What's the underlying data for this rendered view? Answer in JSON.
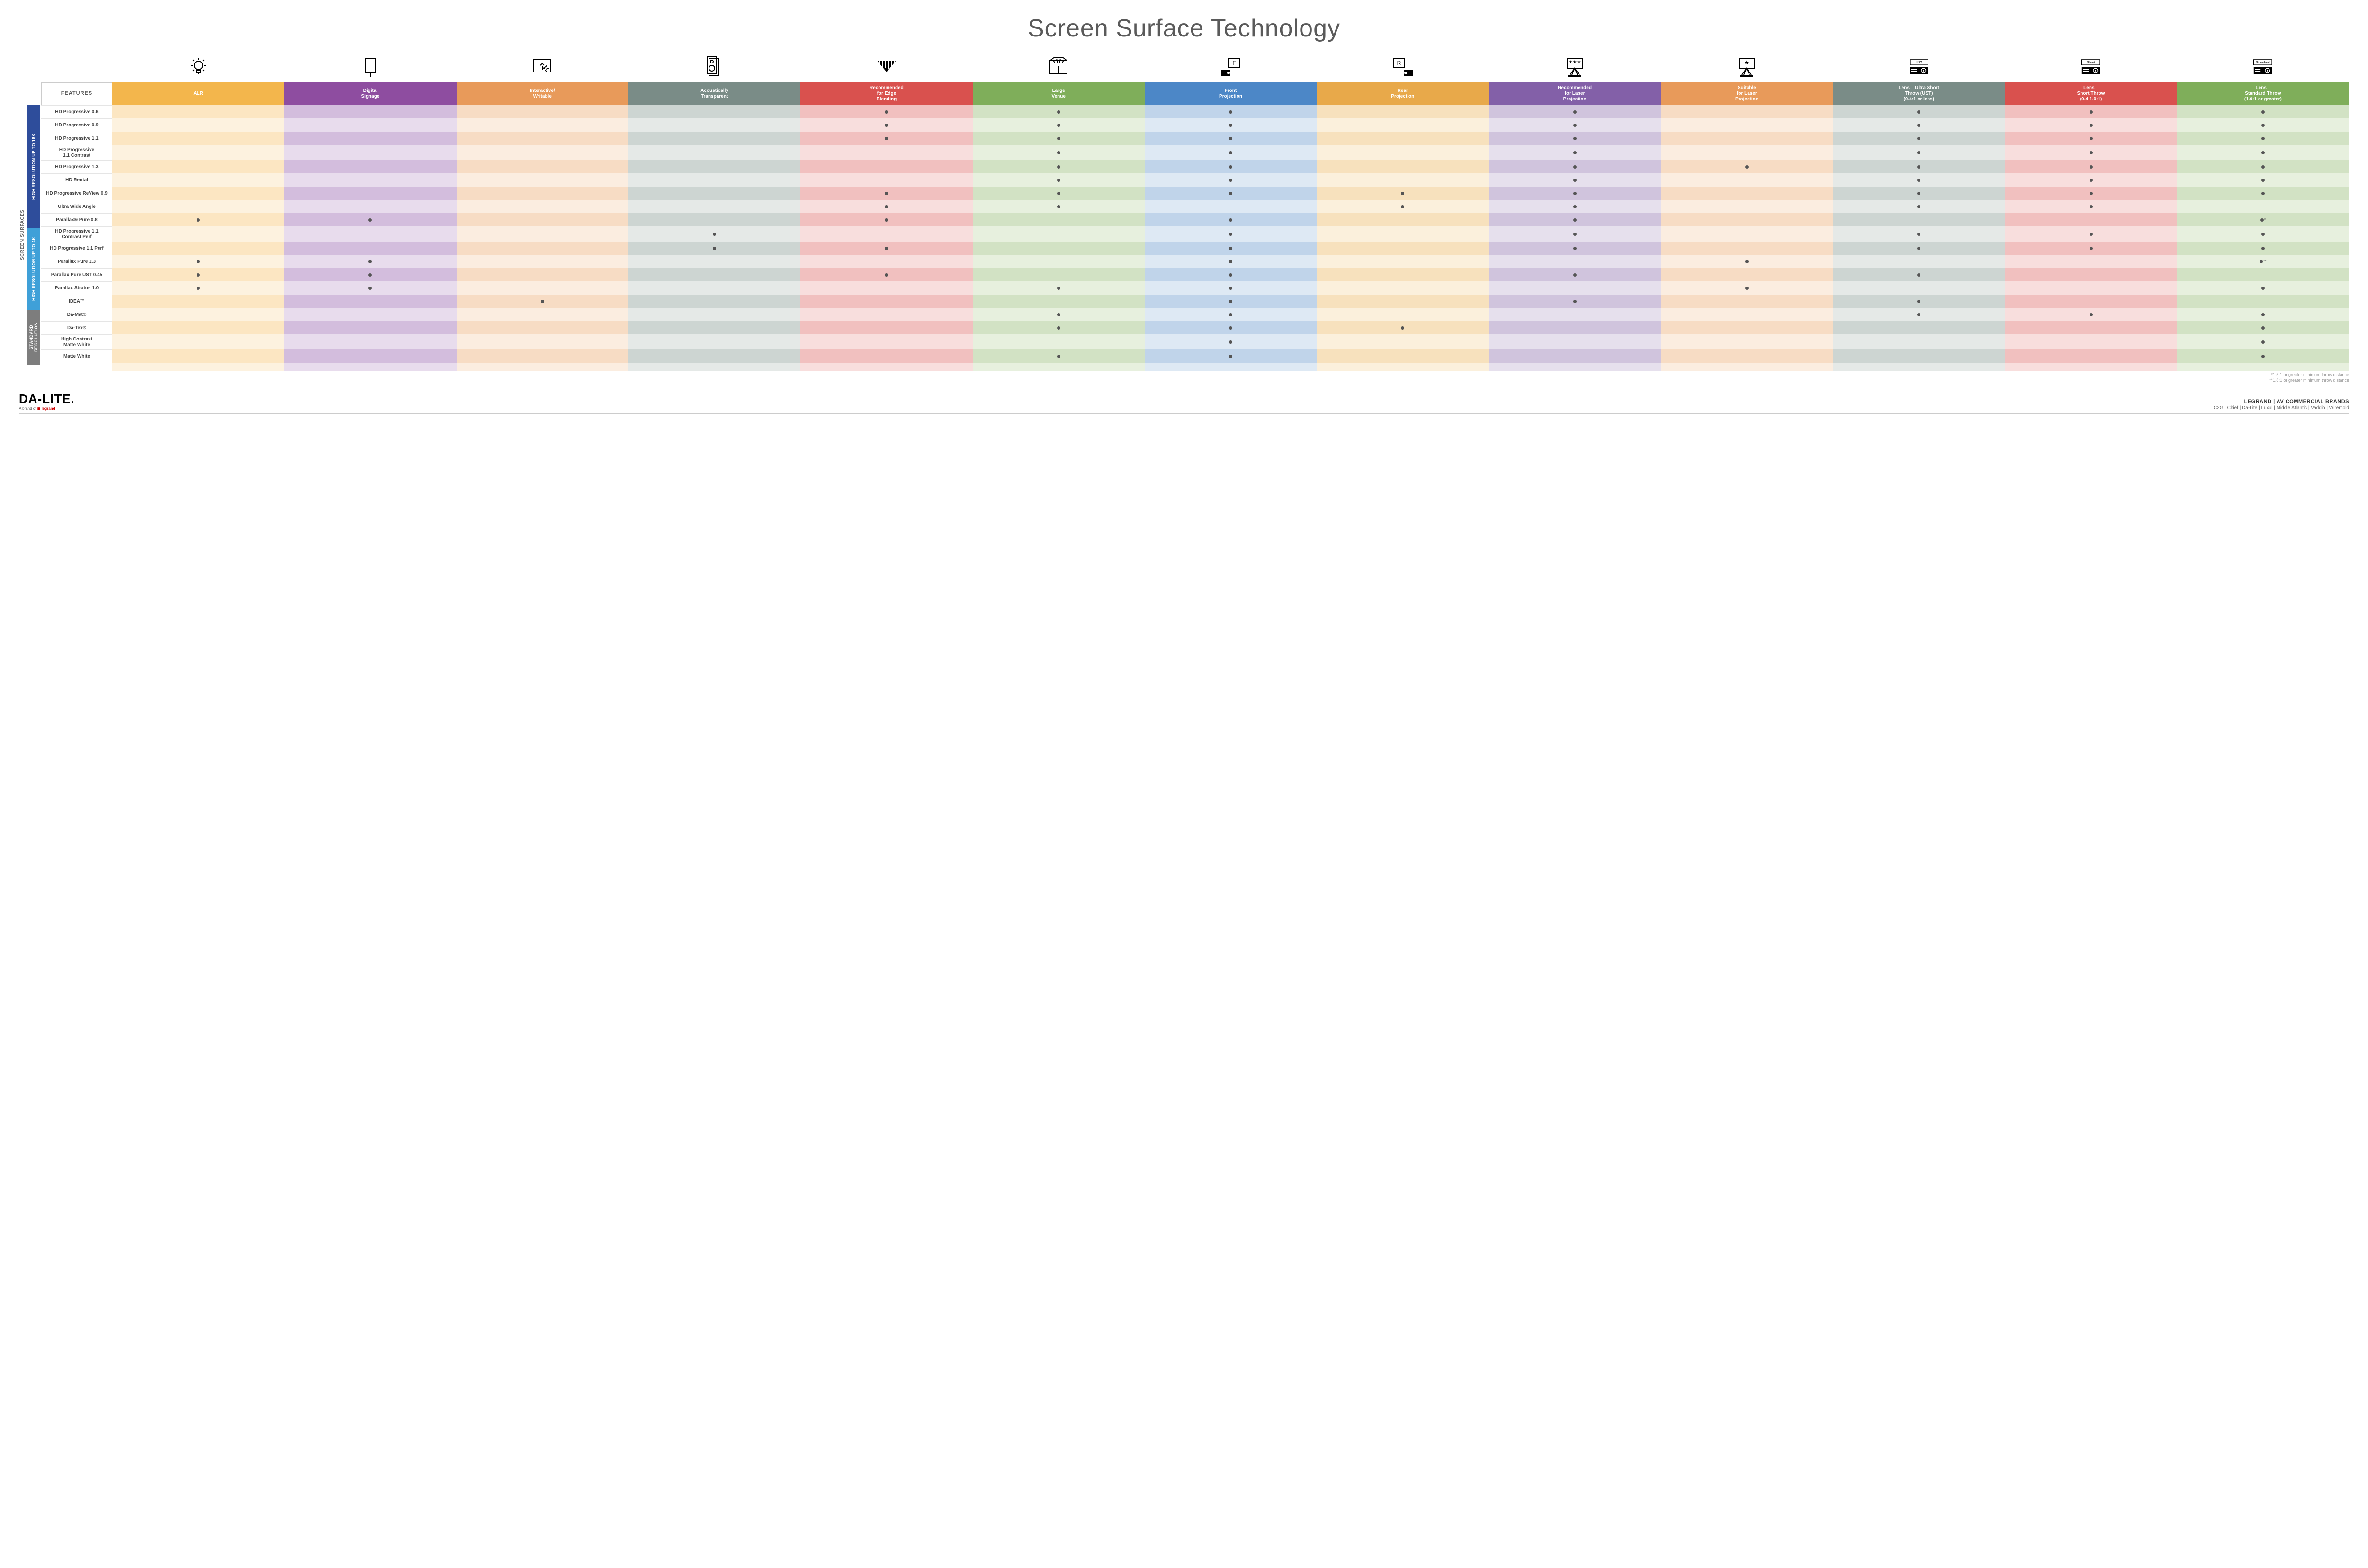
{
  "title": "Screen Surface Technology",
  "features_header": "FEATURES",
  "side_label": "SCREEN SURFACES",
  "columns": [
    {
      "key": "alr",
      "label": "ALR",
      "color": "#f3b64c",
      "light": "#fce6c2",
      "lighter": "#fdf2df"
    },
    {
      "key": "signage",
      "label": "Digital\nSignage",
      "color": "#8e4da0",
      "light": "#d3bddd",
      "lighter": "#e8dced"
    },
    {
      "key": "interactive",
      "label": "Interactive/\nWritable",
      "color": "#e89a5a",
      "light": "#f7dcc4",
      "lighter": "#fbede0"
    },
    {
      "key": "acoustic",
      "label": "Acoustically\nTransparent",
      "color": "#7a8c87",
      "light": "#cdd5d2",
      "lighter": "#e5e9e7"
    },
    {
      "key": "edge",
      "label": "Recommended\nfor Edge\nBlending",
      "color": "#d9514e",
      "light": "#f1c0bf",
      "lighter": "#f8dedd"
    },
    {
      "key": "large",
      "label": "Large\nVenue",
      "color": "#7fae5a",
      "light": "#d2e2c4",
      "lighter": "#e7f0de"
    },
    {
      "key": "front",
      "label": "Front\nProjection",
      "color": "#4c87c7",
      "light": "#c0d4ea",
      "lighter": "#dee9f4"
    },
    {
      "key": "rear",
      "label": "Rear\nProjection",
      "color": "#e8a94a",
      "light": "#f7e1bd",
      "lighter": "#fbf0dc"
    },
    {
      "key": "reclaser",
      "label": "Recommended\nfor Laser\nProjection",
      "color": "#8360a8",
      "light": "#d0c4dd",
      "lighter": "#e6e0ed"
    },
    {
      "key": "suitlaser",
      "label": "Suitable\nfor Laser\nProjection",
      "color": "#e89a5a",
      "light": "#f7dcc4",
      "lighter": "#fbede0"
    },
    {
      "key": "ust",
      "label": "Lens – Ultra Short\nThrow (UST)\n(0.4:1 or less)",
      "color": "#7a8c87",
      "light": "#cdd5d2",
      "lighter": "#e5e9e7"
    },
    {
      "key": "short",
      "label": "Lens –\nShort Throw\n(0.4-1.0:1)",
      "color": "#d9514e",
      "light": "#f1c0bf",
      "lighter": "#f8dedd"
    },
    {
      "key": "std",
      "label": "Lens –\nStandard Throw\n(1.0:1 or greater)",
      "color": "#7fae5a",
      "light": "#d2e2c4",
      "lighter": "#e7f0de"
    }
  ],
  "groups": [
    {
      "label": "HIGH RESOLUTION UP TO 16K",
      "color": "#2e4d9b",
      "rows": [
        {
          "name": "HD Progressive 0.6",
          "cells": {
            "edge": "•",
            "large": "•",
            "front": "•",
            "reclaser": "•",
            "ust": "•",
            "short": "•",
            "std": "•"
          }
        },
        {
          "name": "HD Progressive 0.9",
          "cells": {
            "edge": "•",
            "large": "•",
            "front": "•",
            "reclaser": "•",
            "ust": "•",
            "short": "•",
            "std": "•"
          }
        },
        {
          "name": "HD Progressive 1.1",
          "cells": {
            "edge": "•",
            "large": "•",
            "front": "•",
            "reclaser": "•",
            "ust": "•",
            "short": "•",
            "std": "•"
          }
        },
        {
          "name": "HD Progressive\n1.1 Contrast",
          "cells": {
            "large": "•",
            "front": "•",
            "reclaser": "•",
            "ust": "•",
            "short": "•",
            "std": "•"
          }
        },
        {
          "name": "HD Progressive 1.3",
          "cells": {
            "large": "•",
            "front": "•",
            "reclaser": "•",
            "suitlaser": "•",
            "ust": "•",
            "short": "•",
            "std": "•"
          }
        },
        {
          "name": "HD Rental",
          "cells": {
            "large": "•",
            "front": "•",
            "reclaser": "•",
            "ust": "•",
            "short": "•",
            "std": "•"
          }
        },
        {
          "name": "HD Progressive ReView 0.9",
          "cells": {
            "edge": "•",
            "large": "•",
            "front": "•",
            "rear": "•",
            "reclaser": "•",
            "ust": "•",
            "short": "•",
            "std": "•"
          }
        },
        {
          "name": "Ultra Wide Angle",
          "cells": {
            "edge": "•",
            "large": "•",
            "rear": "•",
            "reclaser": "•",
            "ust": "•",
            "short": "•"
          }
        },
        {
          "name": "Parallax® Pure 0.8",
          "cells": {
            "alr": "•",
            "signage": "•",
            "edge": "•",
            "front": "•",
            "reclaser": "•",
            "std": "•*"
          }
        }
      ]
    },
    {
      "label": "HIGH RESOLUTION UP TO 4K",
      "color": "#3fa0d8",
      "rows": [
        {
          "name": "HD Progressive 1.1\nContrast Perf",
          "cells": {
            "acoustic": "•",
            "front": "•",
            "reclaser": "•",
            "ust": "•",
            "short": "•",
            "std": "•"
          }
        },
        {
          "name": "HD Progressive 1.1 Perf",
          "cells": {
            "acoustic": "•",
            "edge": "•",
            "front": "•",
            "reclaser": "•",
            "ust": "•",
            "short": "•",
            "std": "•"
          }
        },
        {
          "name": "Parallax Pure 2.3",
          "cells": {
            "alr": "•",
            "signage": "•",
            "front": "•",
            "suitlaser": "•",
            "std": "•**"
          }
        },
        {
          "name": "Parallax Pure UST 0.45",
          "cells": {
            "alr": "•",
            "signage": "•",
            "edge": "•",
            "front": "•",
            "reclaser": "•",
            "ust": "•"
          }
        },
        {
          "name": "Parallax Stratos 1.0",
          "cells": {
            "alr": "•",
            "signage": "•",
            "large": "•",
            "front": "•",
            "suitlaser": "•",
            "std": "•"
          }
        },
        {
          "name": "IDEA™",
          "cells": {
            "interactive": "•",
            "front": "•",
            "reclaser": "•",
            "ust": "•"
          }
        }
      ]
    },
    {
      "label": "STANDARD\nRESOLUTION",
      "color": "#7d7d7d",
      "rows": [
        {
          "name": "Da-Mat®",
          "cells": {
            "large": "•",
            "front": "•",
            "ust": "•",
            "short": "•",
            "std": "•"
          }
        },
        {
          "name": "Da-Tex®",
          "cells": {
            "large": "•",
            "front": "•",
            "rear": "•",
            "std": "•"
          }
        },
        {
          "name": "High Contrast\nMatte White",
          "cells": {
            "front": "•",
            "std": "•"
          }
        },
        {
          "name": "Matte White",
          "cells": {
            "large": "•",
            "front": "•",
            "std": "•"
          }
        }
      ]
    }
  ],
  "footnotes": [
    "*1.5:1 or greater minimum throw distance",
    "**1.8:1 or greater minimum throw distance"
  ],
  "brand": {
    "logo": "DA-LITE.",
    "sub_prefix": "A brand of ",
    "sub_brand": "legrand",
    "right_top": "LEGRAND | AV COMMERCIAL BRANDS",
    "right_sub": "C2G  |  Chief  |  Da-Lite  |  Luxul  |  Middle Atlantic  |  Vaddio  |  Wiremold"
  },
  "icons": {
    "alr": "bulb",
    "signage": "signage",
    "interactive": "touch",
    "acoustic": "speaker",
    "edge": "blend",
    "large": "venue",
    "front": "front",
    "rear": "rear",
    "reclaser": "laser3",
    "suitlaser": "laser1",
    "ust": "proj-UST",
    "short": "proj-Short",
    "std": "proj-Standard"
  }
}
